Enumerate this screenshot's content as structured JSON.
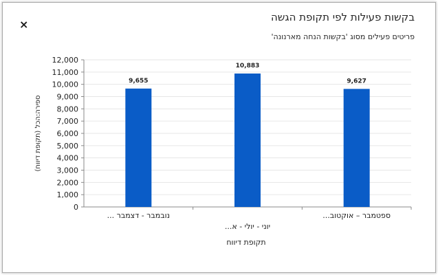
{
  "header": {
    "title": "בקשות פעילות לפי תקופת הגשה",
    "subtitle": "פריטים פעילים מסוג 'בקשות הנחה מארנונה'",
    "close_label": "×"
  },
  "chart_data": {
    "type": "bar",
    "categories": [
      "נובמבר - דצמבר ...",
      "יוני - יולי - א...",
      "ספטמבר – אוקטוב..."
    ],
    "values": [
      9655,
      10883,
      9627
    ],
    "data_labels": [
      "9,655",
      "10,883",
      "9,627"
    ],
    "ylim": [
      0,
      12000
    ],
    "y_ticks": [
      0,
      1000,
      2000,
      3000,
      4000,
      5000,
      6000,
      7000,
      8000,
      9000,
      10000,
      11000,
      12000
    ],
    "y_tick_labels": [
      "0",
      "1,000",
      "2,000",
      "3,000",
      "4,000",
      "5,000",
      "6,000",
      "7,000",
      "8,000",
      "9,000",
      "10,000",
      "11,000",
      "12,000"
    ],
    "xlabel": "תקופת דיווח",
    "ylabel": "ספירה:הכל (תקופת דיווח)",
    "grid": true,
    "bar_color": "#0a5cc7"
  }
}
